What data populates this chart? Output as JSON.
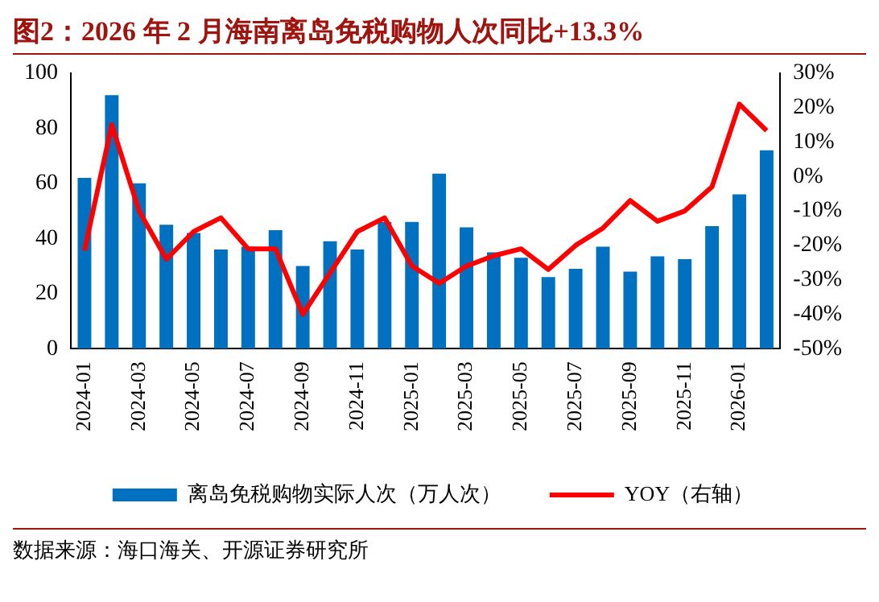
{
  "chart_data": {
    "type": "bar",
    "title": "图2：2026 年 2 月海南离岛免税购物人次同比+13.3%",
    "categories": [
      "2024-01",
      null,
      "2024-03",
      null,
      "2024-05",
      null,
      "2024-07",
      null,
      "2024-09",
      null,
      "2024-11",
      null,
      "2025-01",
      null,
      "2025-03",
      null,
      "2025-05",
      null,
      "2025-07",
      null,
      "2025-09",
      null,
      "2025-11",
      null,
      "2026-01",
      null
    ],
    "series": [
      {
        "name": "离岛免税购物实际人次（万人次）",
        "color": "#0070c0",
        "values": [
          62,
          92,
          60,
          45,
          42,
          36,
          37,
          43,
          30,
          39,
          36,
          46,
          46,
          63.5,
          44,
          35,
          33,
          26,
          29,
          37,
          28,
          33.5,
          32.5,
          44.5,
          56,
          72
        ]
      },
      {
        "name": "YOY（右轴）",
        "type": "line",
        "axis": "y2",
        "color": "#ff0000",
        "values": [
          -21.5,
          15,
          -10,
          -24,
          -16,
          -12,
          -21,
          -21,
          -40,
          -28,
          -16,
          -12,
          -26,
          -31,
          -26,
          -23,
          -21,
          -27,
          -20,
          -15,
          -7,
          -13,
          -10,
          -3,
          21,
          13.3
        ]
      }
    ],
    "ylim": [
      0,
      100
    ],
    "yticks": [
      0,
      20,
      40,
      60,
      80,
      100
    ],
    "y2lim": [
      -50,
      30
    ],
    "y2ticks": [
      {
        "value": -50,
        "label": "-50%"
      },
      {
        "value": -40,
        "label": "-40%"
      },
      {
        "value": -30,
        "label": "-30%"
      },
      {
        "value": -20,
        "label": "-20%"
      },
      {
        "value": -10,
        "label": "-10%"
      },
      {
        "value": 0,
        "label": "0%"
      },
      {
        "value": 10,
        "label": "10%"
      },
      {
        "value": 20,
        "label": "20%"
      },
      {
        "value": 30,
        "label": "30%"
      }
    ],
    "grid": false,
    "legend": "bottom",
    "marker": "none",
    "annotations": [
      "数据来源：海口海关、开源证券研究所"
    ]
  }
}
